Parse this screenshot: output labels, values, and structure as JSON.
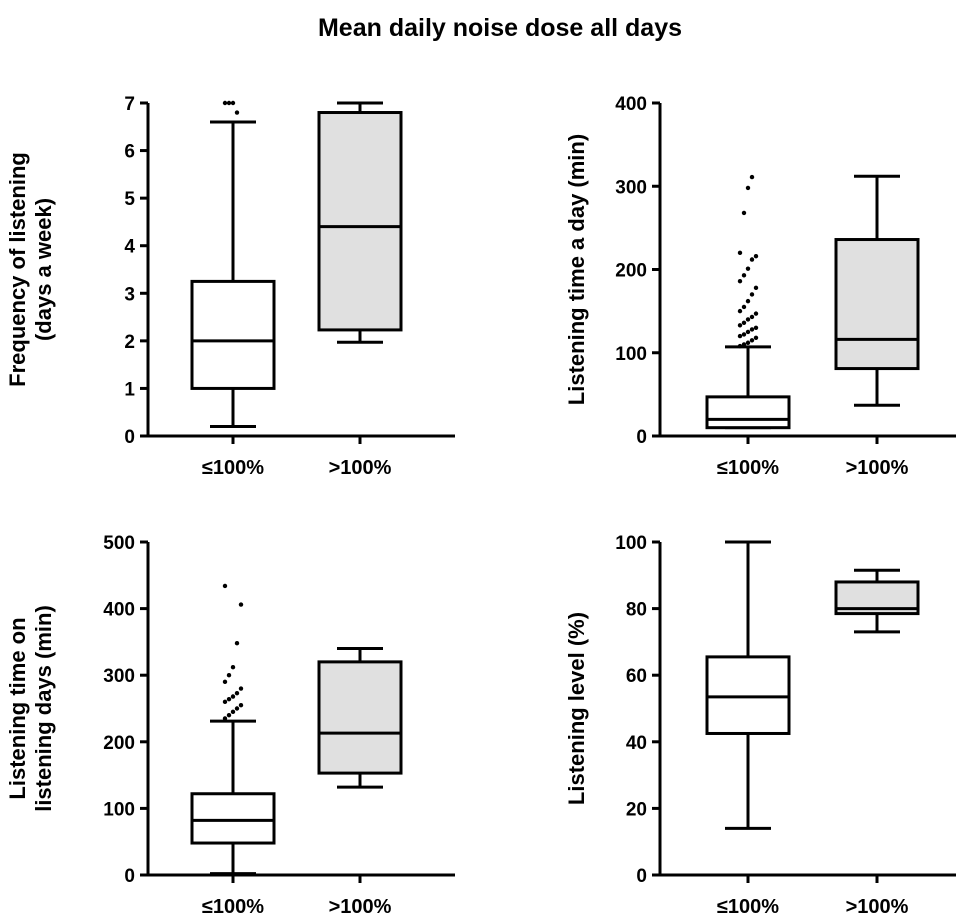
{
  "title": "Mean daily noise dose all days",
  "colors": {
    "box_group1": "#ffffff",
    "box_group2": "#e0e0e0",
    "stroke": "#000000"
  },
  "chart_data": [
    {
      "type": "box",
      "ylabel": [
        "Frequency of listening",
        "(days a week)"
      ],
      "ylim": [
        0,
        7
      ],
      "yticks": [
        0,
        1,
        2,
        3,
        4,
        5,
        6,
        7
      ],
      "categories": [
        "≤100%",
        ">100%"
      ],
      "boxes": [
        {
          "name": "≤100%",
          "whisker_low": 0.2,
          "q1": 1.0,
          "median": 2.0,
          "q3": 3.25,
          "whisker_high": 6.6,
          "outliers": [
            7.0,
            7.0,
            7.0,
            6.8
          ]
        },
        {
          "name": ">100%",
          "whisker_low": 1.97,
          "q1": 2.23,
          "median": 4.4,
          "q3": 6.8,
          "whisker_high": 7.0,
          "outliers": []
        }
      ]
    },
    {
      "type": "box",
      "ylabel": [
        "Listening time a day (min)"
      ],
      "ylim": [
        0,
        400
      ],
      "yticks": [
        0,
        100,
        200,
        300,
        400
      ],
      "categories": [
        "≤100%",
        ">100%"
      ],
      "boxes": [
        {
          "name": "≤100%",
          "whisker_low": 10,
          "q1": 10,
          "median": 20,
          "q3": 47,
          "whisker_high": 107,
          "outliers": [
            108,
            110,
            112,
            115,
            118,
            120,
            122,
            125,
            128,
            130,
            133,
            136,
            140,
            143,
            147,
            150,
            155,
            162,
            170,
            178,
            186,
            193,
            201,
            212,
            216,
            220,
            268,
            298,
            311
          ]
        },
        {
          "name": ">100%",
          "whisker_low": 37,
          "q1": 81,
          "median": 116,
          "q3": 236,
          "whisker_high": 312,
          "outliers": []
        }
      ]
    },
    {
      "type": "box",
      "ylabel": [
        "Listening time on",
        "listening days (min)"
      ],
      "ylim": [
        0,
        500
      ],
      "yticks": [
        0,
        100,
        200,
        300,
        400,
        500
      ],
      "categories": [
        "≤100%",
        ">100%"
      ],
      "boxes": [
        {
          "name": "≤100%",
          "whisker_low": 2,
          "q1": 48,
          "median": 82,
          "q3": 122,
          "whisker_high": 231,
          "outliers": [
            235,
            240,
            245,
            250,
            255,
            260,
            264,
            268,
            273,
            280,
            290,
            300,
            312,
            348,
            406,
            434
          ]
        },
        {
          "name": ">100%",
          "whisker_low": 132,
          "q1": 153,
          "median": 213,
          "q3": 320,
          "whisker_high": 340,
          "outliers": []
        }
      ]
    },
    {
      "type": "box",
      "ylabel": [
        "Listening level (%)"
      ],
      "ylim": [
        0,
        100
      ],
      "yticks": [
        0,
        20,
        40,
        60,
        80,
        100
      ],
      "categories": [
        "≤100%",
        ">100%"
      ],
      "boxes": [
        {
          "name": "≤100%",
          "whisker_low": 14,
          "q1": 42.5,
          "median": 53.5,
          "q3": 65.5,
          "whisker_high": 100,
          "outliers": []
        },
        {
          "name": ">100%",
          "whisker_low": 73,
          "q1": 78.5,
          "median": 80,
          "q3": 88,
          "whisker_high": 91.5,
          "outliers": []
        }
      ]
    }
  ]
}
